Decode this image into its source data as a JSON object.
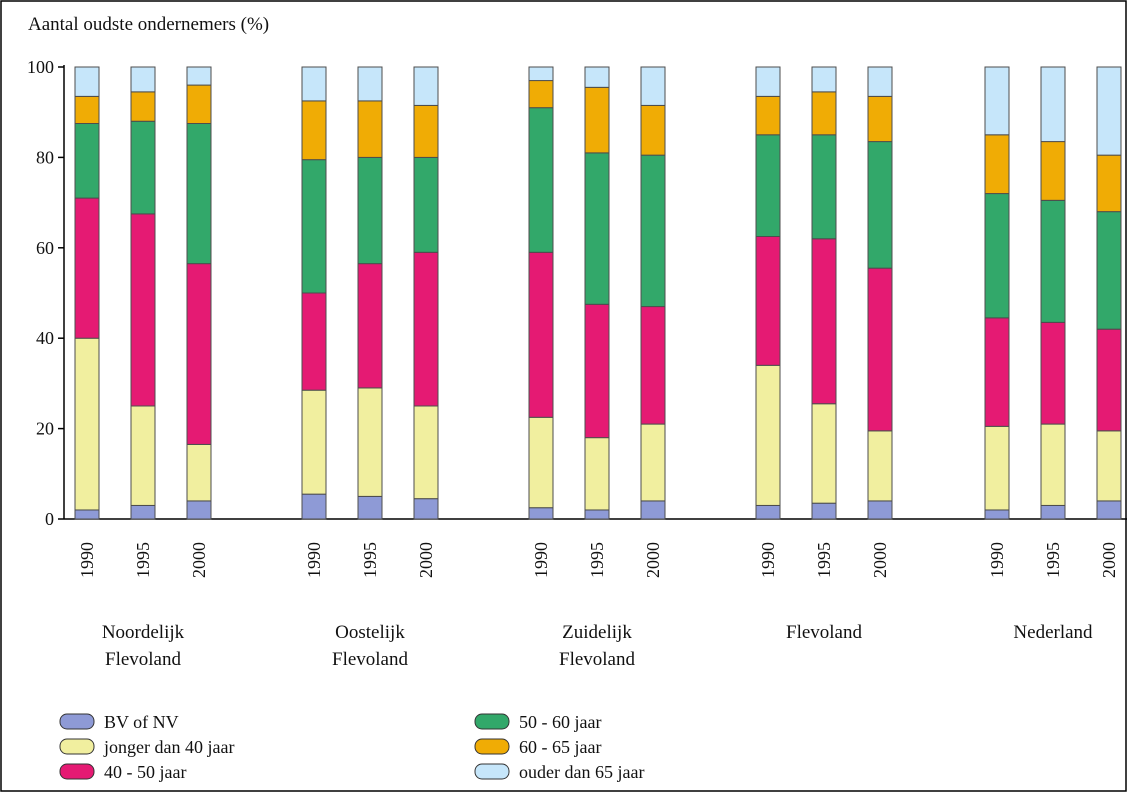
{
  "chart_data": {
    "type": "bar",
    "stacked": true,
    "title": "Aantal oudste ondernemers (%)",
    "ylim": [
      0,
      100
    ],
    "yticks": [
      "0",
      "20",
      "40",
      "60",
      "80",
      "100"
    ],
    "grid": false,
    "legend_position": "bottom-left",
    "groups": [
      {
        "label_lines": [
          "Noordelijk",
          "Flevoland"
        ],
        "years": [
          "1990",
          "1995",
          "2000"
        ]
      },
      {
        "label_lines": [
          "Oostelijk",
          "Flevoland"
        ],
        "years": [
          "1990",
          "1995",
          "2000"
        ]
      },
      {
        "label_lines": [
          "Zuidelijk",
          "Flevoland"
        ],
        "years": [
          "1990",
          "1995",
          "2000"
        ]
      },
      {
        "label_lines": [
          "Flevoland"
        ],
        "years": [
          "1990",
          "1995",
          "2000"
        ]
      },
      {
        "label_lines": [
          "Nederland"
        ],
        "years": [
          "1990",
          "1995",
          "2000"
        ]
      }
    ],
    "series": [
      {
        "name": "BV of NV",
        "color": "#8e9ad6",
        "values": [
          2,
          3,
          4,
          5.5,
          5,
          4.5,
          2.5,
          2,
          4,
          3,
          3.5,
          4,
          2,
          3,
          4
        ]
      },
      {
        "name": "jonger dan 40 jaar",
        "color": "#f1ef9f",
        "values": [
          38,
          22,
          12.5,
          23,
          24,
          20.5,
          20,
          16,
          17,
          31,
          22,
          15.5,
          18.5,
          18,
          15.5
        ]
      },
      {
        "name": "40 - 50 jaar",
        "color": "#e51a73",
        "values": [
          31,
          42.5,
          40,
          21.5,
          27.5,
          34,
          36.5,
          29.5,
          26,
          28.5,
          36.5,
          36,
          24,
          22.5,
          22.5
        ]
      },
      {
        "name": "50 - 60 jaar",
        "color": "#32a86a",
        "values": [
          16.5,
          20.5,
          31,
          29.5,
          23.5,
          21,
          32,
          33.5,
          33.5,
          22.5,
          23,
          28,
          27.5,
          27,
          26
        ]
      },
      {
        "name": "60 - 65 jaar",
        "color": "#f0ac05",
        "values": [
          6,
          6.5,
          8.5,
          13,
          12.5,
          11.5,
          6,
          14.5,
          11,
          8.5,
          9.5,
          10,
          13,
          13,
          12.5
        ]
      },
      {
        "name": "ouder dan 65 jaar",
        "color": "#c6e6fa",
        "values": [
          6.5,
          5.5,
          4,
          7.5,
          7.5,
          8.5,
          3,
          4.5,
          8.5,
          6.5,
          5.5,
          6.5,
          15,
          16.5,
          19.5
        ]
      }
    ]
  }
}
